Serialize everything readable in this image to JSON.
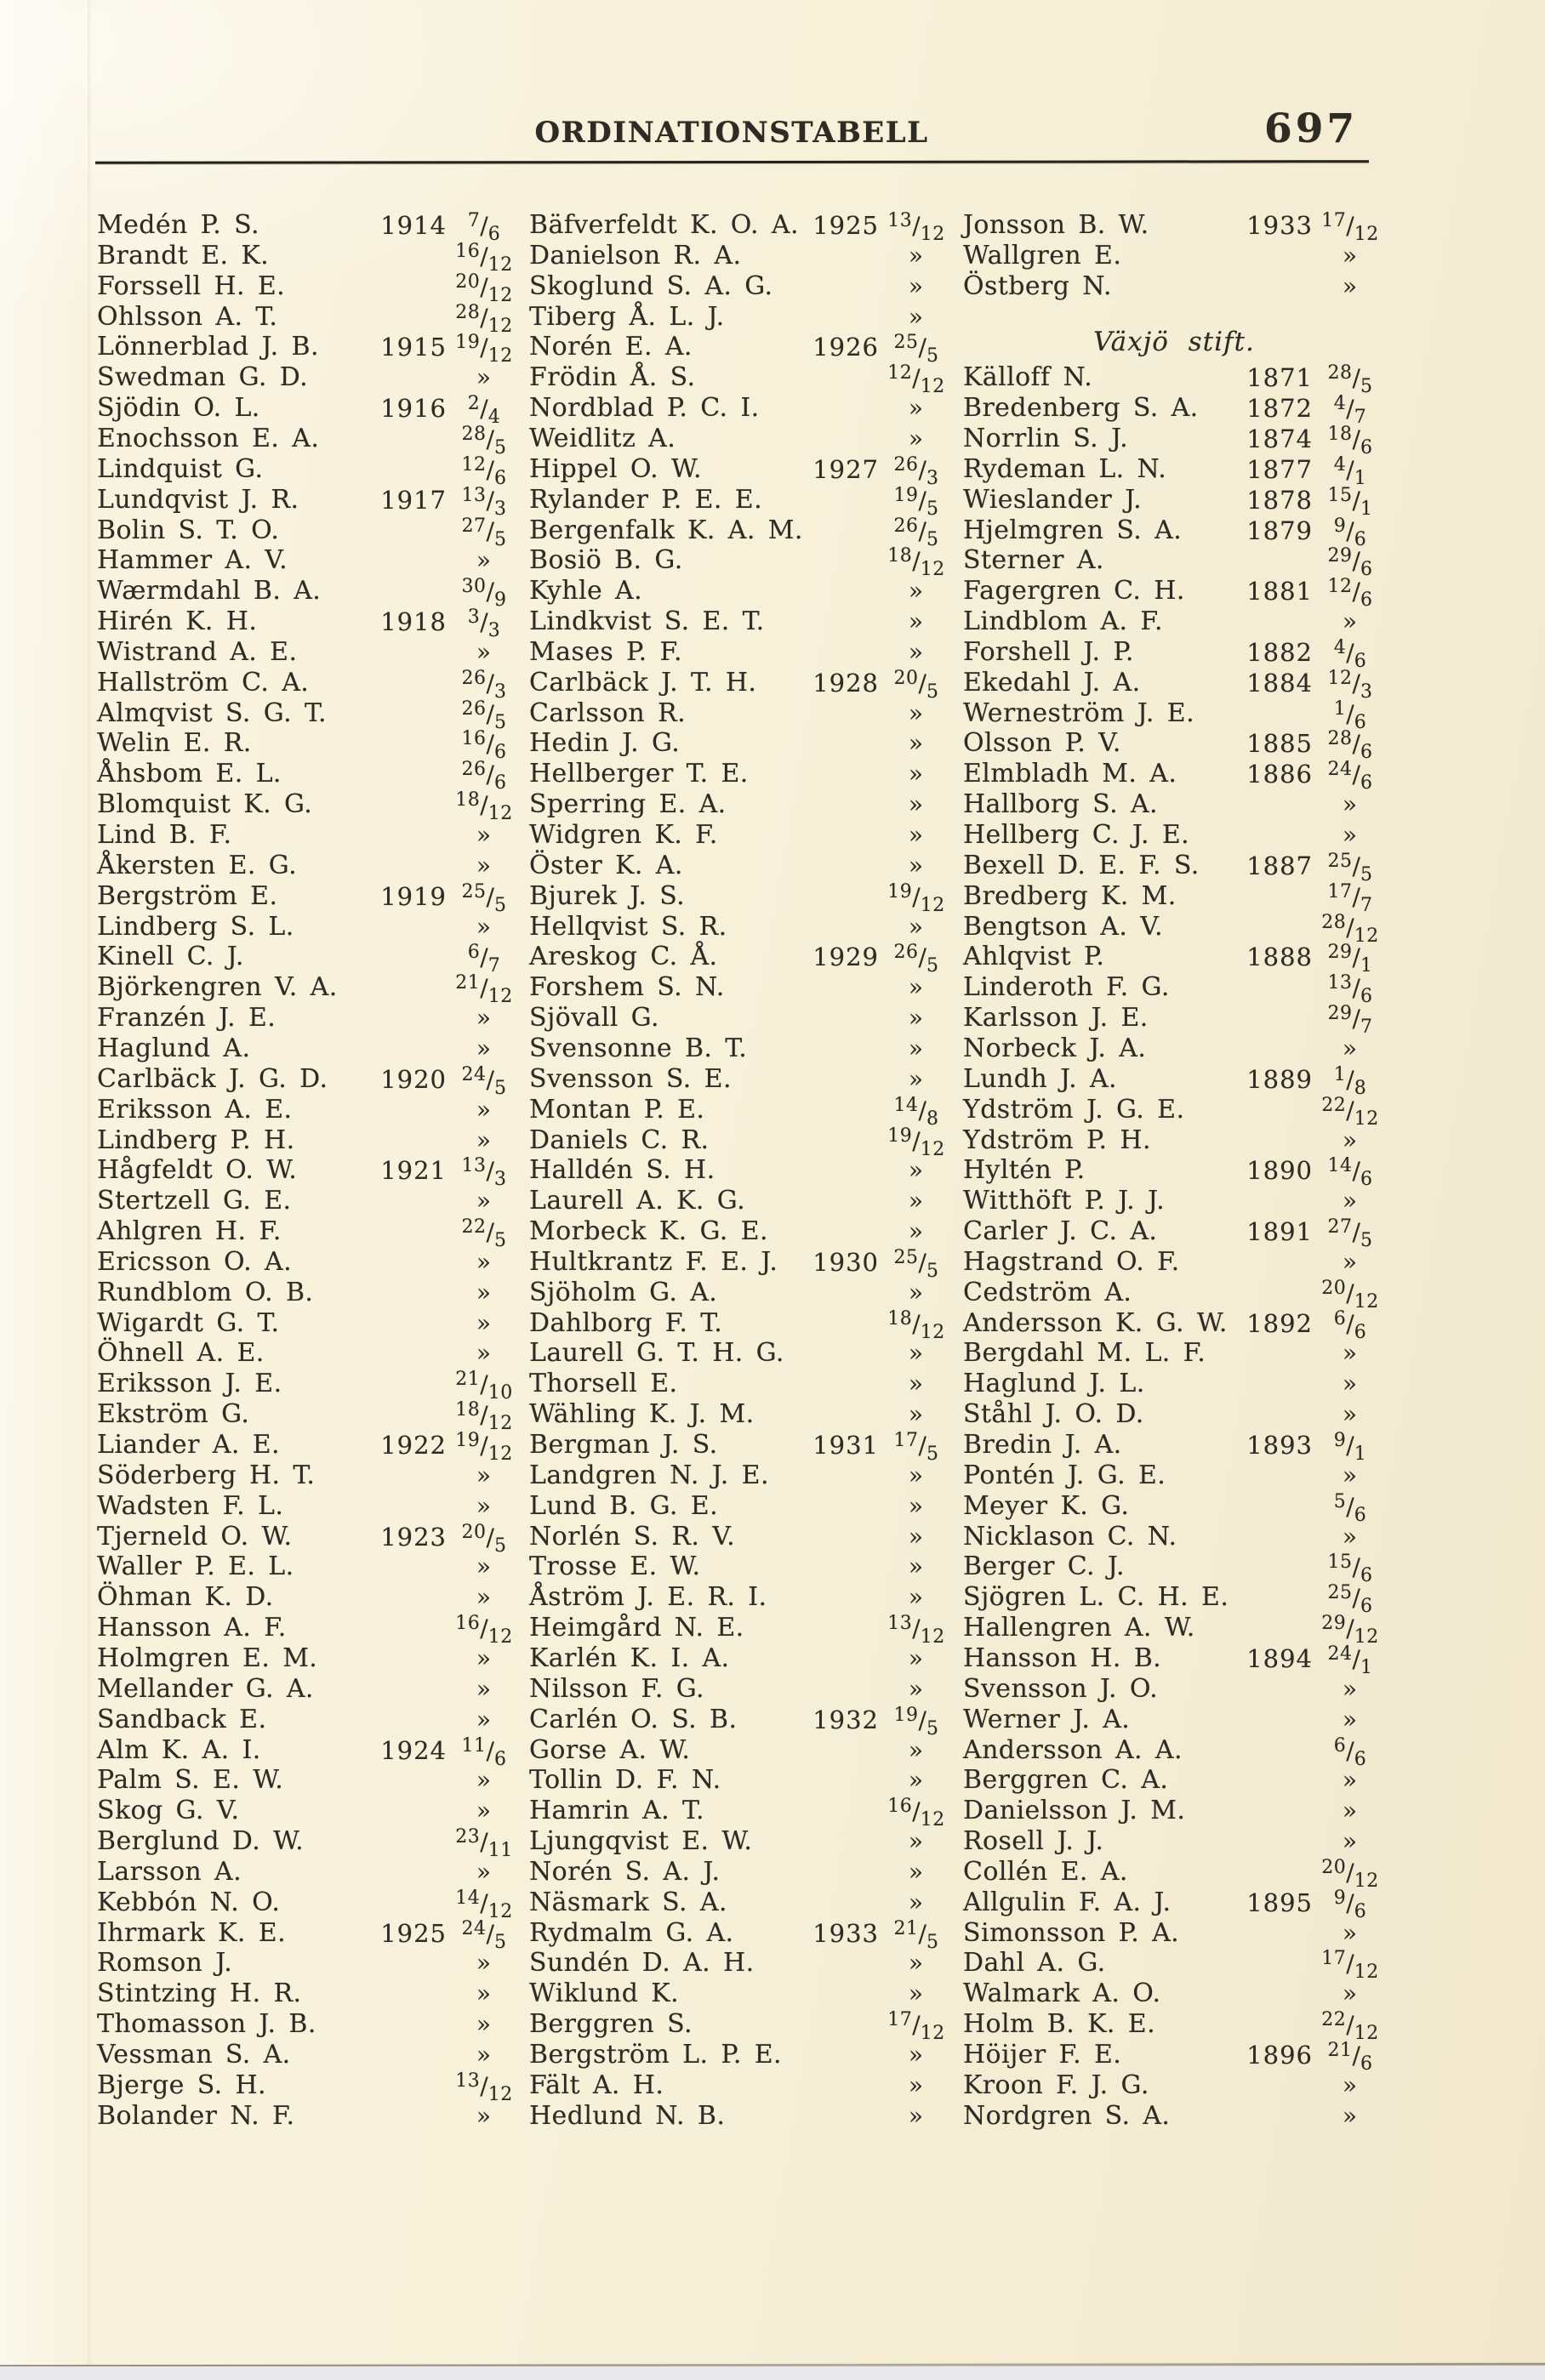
{
  "page": {
    "title": "ORDINATIONSTABELL",
    "page_number": "697",
    "section_header": "Växjö stift.",
    "ditto_mark": "»"
  },
  "colors": {
    "paper": "#f7f1da",
    "paper_dark_edge": "#f1e8cd",
    "ink": "#2e2a24",
    "rule": "#25221b",
    "scanner_strip": "#e9e9ed"
  },
  "table": {
    "row_format": [
      "name1",
      "year1",
      "date1",
      "name2",
      "year2",
      "date2",
      "name3",
      "year3",
      "date3"
    ],
    "rows": [
      {
        "cells": [
          "Medén P. S.",
          "1914",
          "7/6",
          "Bäfverfeldt K. O. A.",
          "1925",
          "13/12",
          "Jonsson B. W.",
          "1933",
          "17/12"
        ]
      },
      {
        "cells": [
          "Brandt E. K.",
          "",
          "16/12",
          "Danielson R. A.",
          "",
          "»",
          "Wallgren E.",
          "",
          "»"
        ]
      },
      {
        "cells": [
          "Forssell H. E.",
          "",
          "20/12",
          "Skoglund S. A. G.",
          "",
          "»",
          "Östberg N.",
          "",
          "»"
        ]
      },
      {
        "cells": [
          "Ohlsson A. T.",
          "",
          "28/12",
          "Tiberg Å. L. J.",
          "",
          "»",
          "",
          "",
          ""
        ]
      },
      {
        "cells": [
          "Lönnerblad J. B.",
          "1915",
          "19/12",
          "Norén E. A.",
          "1926",
          "25/5",
          "",
          "",
          ""
        ],
        "section": "Växjö stift."
      },
      {
        "cells": [
          "Swedman G. D.",
          "",
          "»",
          "Frödin Å. S.",
          "",
          "12/12",
          "Källoff N.",
          "1871",
          "28/5"
        ]
      },
      {
        "cells": [
          "Sjödin O. L.",
          "1916",
          "2/4",
          "Nordblad P. C. I.",
          "",
          "»",
          "Bredenberg S. A.",
          "1872",
          "4/7"
        ]
      },
      {
        "cells": [
          "Enochsson E. A.",
          "",
          "28/5",
          "Weidlitz A.",
          "",
          "»",
          "Norrlin S. J.",
          "1874",
          "18/6"
        ]
      },
      {
        "cells": [
          "Lindquist G.",
          "",
          "12/6",
          "Hippel O. W.",
          "1927",
          "26/3",
          "Rydeman L. N.",
          "1877",
          "4/1"
        ]
      },
      {
        "cells": [
          "Lundqvist J. R.",
          "1917",
          "13/3",
          "Rylander P. E. E.",
          "",
          "19/5",
          "Wieslander J.",
          "1878",
          "15/1"
        ]
      },
      {
        "cells": [
          "Bolin S. T. O.",
          "",
          "27/5",
          "Bergenfalk K. A. M.",
          "",
          "26/5",
          "Hjelmgren S. A.",
          "1879",
          "9/6"
        ]
      },
      {
        "cells": [
          "Hammer A. V.",
          "",
          "»",
          "Bosiö B. G.",
          "",
          "18/12",
          "Sterner A.",
          "",
          "29/6"
        ]
      },
      {
        "cells": [
          "Wærmdahl B. A.",
          "",
          "30/9",
          "Kyhle A.",
          "",
          "»",
          "Fagergren C. H.",
          "1881",
          "12/6"
        ]
      },
      {
        "cells": [
          "Hirén K. H.",
          "1918",
          "3/3",
          "Lindkvist S. E. T.",
          "",
          "»",
          "Lindblom A. F.",
          "",
          "»"
        ]
      },
      {
        "cells": [
          "Wistrand A. E.",
          "",
          "»",
          "Mases P. F.",
          "",
          "»",
          "Forshell J. P.",
          "1882",
          "4/6"
        ]
      },
      {
        "cells": [
          "Hallström C. A.",
          "",
          "26/3",
          "Carlbäck J. T. H.",
          "1928",
          "20/5",
          "Ekedahl J. A.",
          "1884",
          "12/3"
        ]
      },
      {
        "cells": [
          "Almqvist S. G. T.",
          "",
          "26/5",
          "Carlsson R.",
          "",
          "»",
          "Werneström J. E.",
          "",
          "1/6"
        ]
      },
      {
        "cells": [
          "Welin E. R.",
          "",
          "16/6",
          "Hedin J. G.",
          "",
          "»",
          "Olsson P. V.",
          "1885",
          "28/6"
        ]
      },
      {
        "cells": [
          "Åhsbom E. L.",
          "",
          "26/6",
          "Hellberger T. E.",
          "",
          "»",
          "Elmbladh M. A.",
          "1886",
          "24/6"
        ]
      },
      {
        "cells": [
          "Blomquist K. G.",
          "",
          "18/12",
          "Sperring E. A.",
          "",
          "»",
          "Hallborg S. A.",
          "",
          "»"
        ]
      },
      {
        "cells": [
          "Lind B. F.",
          "",
          "»",
          "Widgren K. F.",
          "",
          "»",
          "Hellberg C. J. E.",
          "",
          "»"
        ]
      },
      {
        "cells": [
          "Åkersten E. G.",
          "",
          "»",
          "Öster K. A.",
          "",
          "»",
          "Bexell D. E. F. S.",
          "1887",
          "25/5"
        ]
      },
      {
        "cells": [
          "Bergström E.",
          "1919",
          "25/5",
          "Bjurek J. S.",
          "",
          "19/12",
          "Bredberg K. M.",
          "",
          "17/7"
        ]
      },
      {
        "cells": [
          "Lindberg S. L.",
          "",
          "»",
          "Hellqvist S. R.",
          "",
          "»",
          "Bengtson A. V.",
          "",
          "28/12"
        ]
      },
      {
        "cells": [
          "Kinell C. J.",
          "",
          "6/7",
          "Areskog C. Å.",
          "1929",
          "26/5",
          "Ahlqvist P.",
          "1888",
          "29/1"
        ]
      },
      {
        "cells": [
          "Björkengren V. A.",
          "",
          "21/12",
          "Forshem S. N.",
          "",
          "»",
          "Linderoth F. G.",
          "",
          "13/6"
        ]
      },
      {
        "cells": [
          "Franzén J. E.",
          "",
          "»",
          "Sjövall G.",
          "",
          "»",
          "Karlsson J. E.",
          "",
          "29/7"
        ]
      },
      {
        "cells": [
          "Haglund A.",
          "",
          "»",
          "Svensonne B. T.",
          "",
          "»",
          "Norbeck J. A.",
          "",
          "»"
        ]
      },
      {
        "cells": [
          "Carlbäck J. G. D.",
          "1920",
          "24/5",
          "Svensson S. E.",
          "",
          "»",
          "Lundh J. A.",
          "1889",
          "1/8"
        ]
      },
      {
        "cells": [
          "Eriksson A. E.",
          "",
          "»",
          "Montan P. E.",
          "",
          "14/8",
          "Ydström J. G. E.",
          "",
          "22/12"
        ]
      },
      {
        "cells": [
          "Lindberg P. H.",
          "",
          "»",
          "Daniels C. R.",
          "",
          "19/12",
          "Ydström P. H.",
          "",
          "»"
        ]
      },
      {
        "cells": [
          "Hågfeldt O. W.",
          "1921",
          "13/3",
          "Halldén S. H.",
          "",
          "»",
          "Hyltén P.",
          "1890",
          "14/6"
        ]
      },
      {
        "cells": [
          "Stertzell G. E.",
          "",
          "»",
          "Laurell A. K. G.",
          "",
          "»",
          "Witthöft P. J. J.",
          "",
          "»"
        ]
      },
      {
        "cells": [
          "Ahlgren H. F.",
          "",
          "22/5",
          "Morbeck K. G. E.",
          "",
          "»",
          "Carler J. C. A.",
          "1891",
          "27/5"
        ]
      },
      {
        "cells": [
          "Ericsson O. A.",
          "",
          "»",
          "Hultkrantz F. E. J.",
          "1930",
          "25/5",
          "Hagstrand O. F.",
          "",
          "»"
        ]
      },
      {
        "cells": [
          "Rundblom O. B.",
          "",
          "»",
          "Sjöholm G. A.",
          "",
          "»",
          "Cedström A.",
          "",
          "20/12"
        ]
      },
      {
        "cells": [
          "Wigardt G. T.",
          "",
          "»",
          "Dahlborg F. T.",
          "",
          "18/12",
          "Andersson K. G. W.",
          "1892",
          "6/6"
        ]
      },
      {
        "cells": [
          "Öhnell A. E.",
          "",
          "»",
          "Laurell G. T. H. G.",
          "",
          "»",
          "Bergdahl M. L. F.",
          "",
          "»"
        ]
      },
      {
        "cells": [
          "Eriksson J. E.",
          "",
          "21/10",
          "Thorsell E.",
          "",
          "»",
          "Haglund J. L.",
          "",
          "»"
        ]
      },
      {
        "cells": [
          "Ekström G.",
          "",
          "18/12",
          "Wähling K. J. M.",
          "",
          "»",
          "Ståhl J. O. D.",
          "",
          "»"
        ]
      },
      {
        "cells": [
          "Liander A. E.",
          "1922",
          "19/12",
          "Bergman J. S.",
          "1931",
          "17/5",
          "Bredin J. A.",
          "1893",
          "9/1"
        ]
      },
      {
        "cells": [
          "Söderberg H. T.",
          "",
          "»",
          "Landgren N. J. E.",
          "",
          "»",
          "Pontén J. G. E.",
          "",
          "»"
        ]
      },
      {
        "cells": [
          "Wadsten F. L.",
          "",
          "»",
          "Lund B. G. E.",
          "",
          "»",
          "Meyer K. G.",
          "",
          "5/6"
        ]
      },
      {
        "cells": [
          "Tjerneld O. W.",
          "1923",
          "20/5",
          "Norlén S. R. V.",
          "",
          "»",
          "Nicklason C. N.",
          "",
          "»"
        ]
      },
      {
        "cells": [
          "Waller P. E. L.",
          "",
          "»",
          "Trosse E. W.",
          "",
          "»",
          "Berger C. J.",
          "",
          "15/6"
        ]
      },
      {
        "cells": [
          "Öhman K. D.",
          "",
          "»",
          "Åström J. E. R. I.",
          "",
          "»",
          "Sjögren L. C. H. E.",
          "",
          "25/6"
        ]
      },
      {
        "cells": [
          "Hansson A. F.",
          "",
          "16/12",
          "Heimgård N. E.",
          "",
          "13/12",
          "Hallengren A. W.",
          "",
          "29/12"
        ]
      },
      {
        "cells": [
          "Holmgren E. M.",
          "",
          "»",
          "Karlén K. I. A.",
          "",
          "»",
          "Hansson H. B.",
          "1894",
          "24/1"
        ]
      },
      {
        "cells": [
          "Mellander G. A.",
          "",
          "»",
          "Nilsson F. G.",
          "",
          "»",
          "Svensson J. O.",
          "",
          "»"
        ]
      },
      {
        "cells": [
          "Sandback E.",
          "",
          "»",
          "Carlén O. S. B.",
          "1932",
          "19/5",
          "Werner J. A.",
          "",
          "»"
        ]
      },
      {
        "cells": [
          "Alm K. A. I.",
          "1924",
          "11/6",
          "Gorse A. W.",
          "",
          "»",
          "Andersson A. A.",
          "",
          "6/6"
        ]
      },
      {
        "cells": [
          "Palm S. E. W.",
          "",
          "»",
          "Tollin D. F. N.",
          "",
          "»",
          "Berggren C. A.",
          "",
          "»"
        ]
      },
      {
        "cells": [
          "Skog G. V.",
          "",
          "»",
          "Hamrin A. T.",
          "",
          "16/12",
          "Danielsson J. M.",
          "",
          "»"
        ]
      },
      {
        "cells": [
          "Berglund D. W.",
          "",
          "23/11",
          "Ljungqvist E. W.",
          "",
          "»",
          "Rosell J. J.",
          "",
          "»"
        ]
      },
      {
        "cells": [
          "Larsson A.",
          "",
          "»",
          "Norén S. A. J.",
          "",
          "»",
          "Collén E. A.",
          "",
          "20/12"
        ]
      },
      {
        "cells": [
          "Kebbón N. O.",
          "",
          "14/12",
          "Näsmark S. A.",
          "",
          "»",
          "Allgulin F. A. J.",
          "1895",
          "9/6"
        ]
      },
      {
        "cells": [
          "Ihrmark K. E.",
          "1925",
          "24/5",
          "Rydmalm G. A.",
          "1933",
          "21/5",
          "Simonsson P. A.",
          "",
          "»"
        ]
      },
      {
        "cells": [
          "Romson J.",
          "",
          "»",
          "Sundén D. A. H.",
          "",
          "»",
          "Dahl A. G.",
          "",
          "17/12"
        ]
      },
      {
        "cells": [
          "Stintzing H. R.",
          "",
          "»",
          "Wiklund K.",
          "",
          "»",
          "Walmark A. O.",
          "",
          "»"
        ]
      },
      {
        "cells": [
          "Thomasson J. B.",
          "",
          "»",
          "Berggren S.",
          "",
          "17/12",
          "Holm B. K. E.",
          "",
          "22/12"
        ]
      },
      {
        "cells": [
          "Vessman S. A.",
          "",
          "»",
          "Bergström L. P. E.",
          "",
          "»",
          "Höijer F. E.",
          "1896",
          "21/6"
        ]
      },
      {
        "cells": [
          "Bjerge S. H.",
          "",
          "13/12",
          "Fält A. H.",
          "",
          "»",
          "Kroon F. J. G.",
          "",
          "»"
        ]
      },
      {
        "cells": [
          "Bolander N. F.",
          "",
          "»",
          "Hedlund N. B.",
          "",
          "»",
          "Nordgren S. A.",
          "",
          "»"
        ]
      }
    ]
  }
}
